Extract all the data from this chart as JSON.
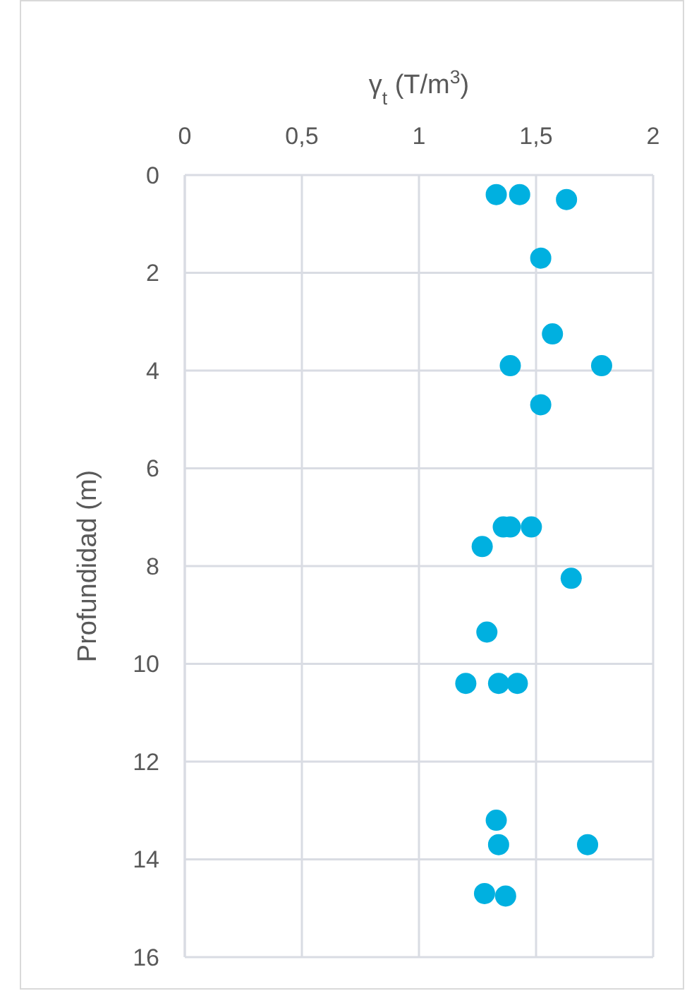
{
  "chart_data": {
    "type": "scatter",
    "xlabel": "γ$_{t}$ (T/m$^{3}$)",
    "ylabel": "Profundidad (m)",
    "xlim": [
      0,
      2
    ],
    "xticks": [
      0,
      {
        "value": 0.5,
        "label": "0,5"
      },
      1,
      {
        "value": 1.5,
        "label": "1,5"
      },
      2
    ],
    "ylim": [
      16,
      0
    ],
    "yticks": [
      0,
      2,
      4,
      6,
      8,
      10,
      12,
      14,
      16
    ],
    "grid": true,
    "marker": "circle",
    "series": [
      {
        "color": "#00b0e0",
        "x": [
          1.33,
          1.43,
          1.63,
          1.52,
          1.57,
          1.39,
          1.78,
          1.52,
          1.36,
          1.39,
          1.48,
          1.27,
          1.65,
          1.29,
          1.2,
          1.34,
          1.42,
          1.33,
          1.34,
          1.72,
          1.28,
          1.37
        ],
        "values": [
          0.4,
          0.4,
          0.5,
          1.7,
          3.25,
          3.9,
          3.9,
          4.7,
          7.2,
          7.2,
          7.2,
          7.6,
          8.25,
          9.35,
          10.4,
          10.4,
          10.4,
          13.2,
          13.7,
          13.7,
          14.7,
          14.75
        ]
      }
    ]
  }
}
